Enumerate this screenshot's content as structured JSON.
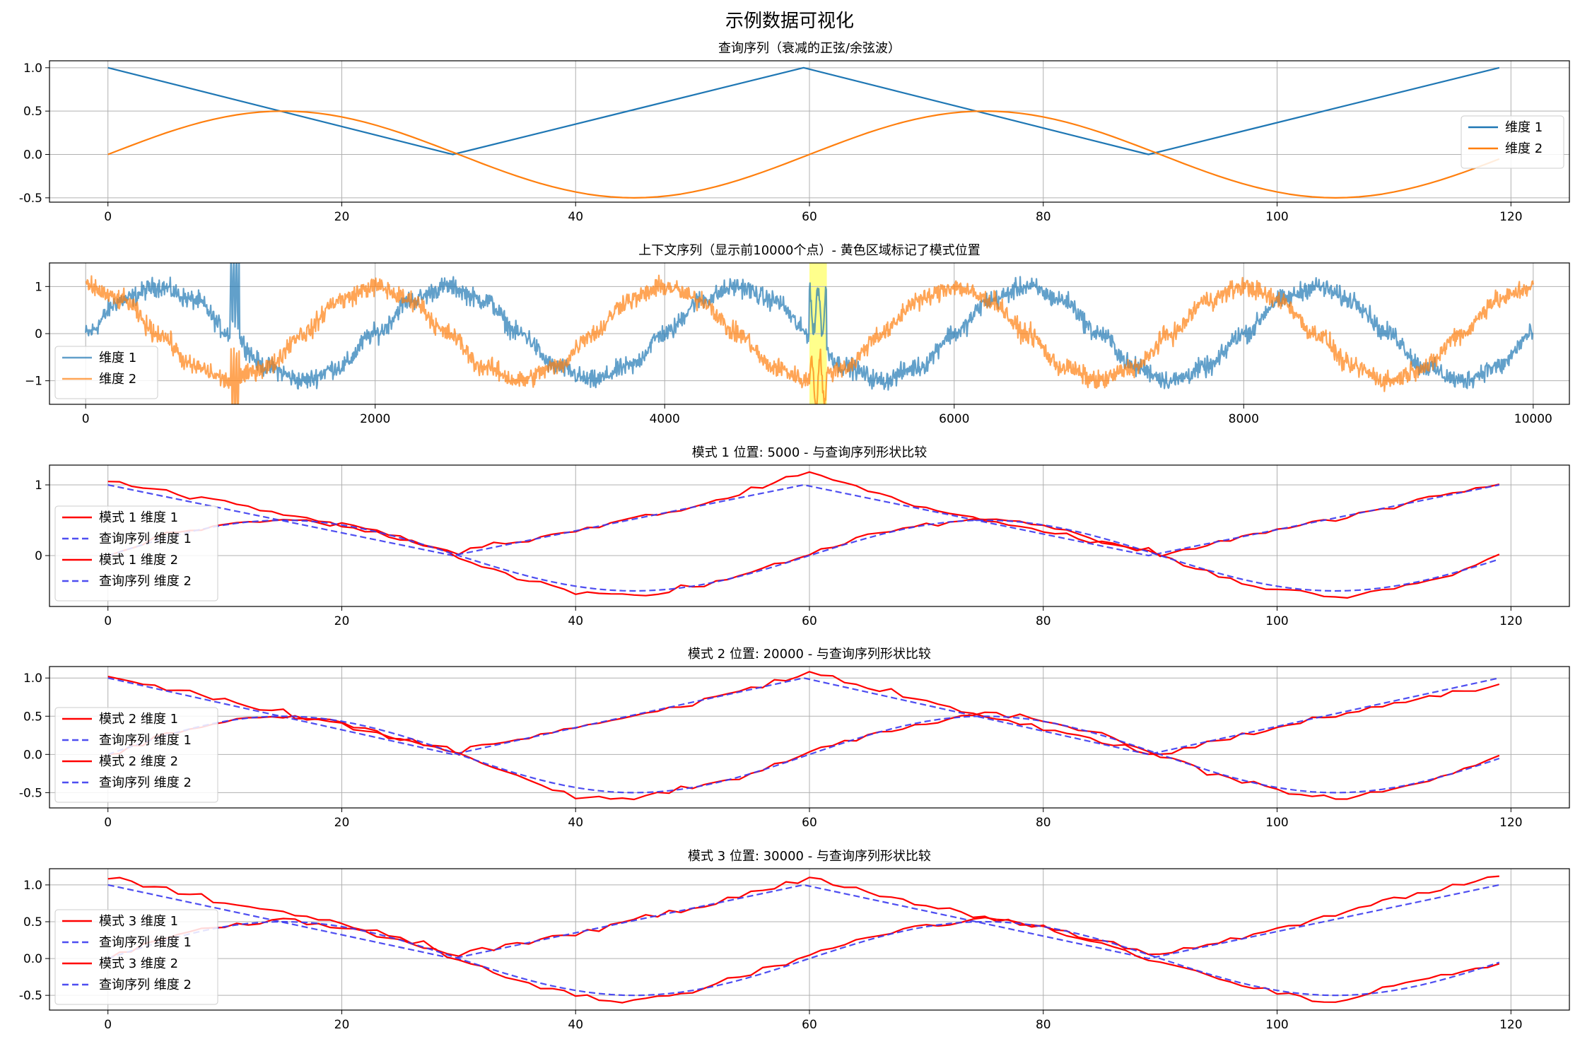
{
  "figure": {
    "suptitle": "示例数据可视化"
  },
  "colors": {
    "dim1_main": "#1f77b4",
    "dim2_main": "#ff7f0e",
    "pattern": "#ff0000",
    "query_dashed": "#3b3bf0",
    "highlight": "#ffff66",
    "grid": "#b0b0b0"
  },
  "chart_data": [
    {
      "type": "line",
      "title": "查询序列（衰减的正弦/余弦波）",
      "xlim": [
        -5,
        125
      ],
      "ylim": [
        -0.55,
        1.08
      ],
      "xticks": [
        0,
        20,
        40,
        60,
        80,
        100,
        120
      ],
      "yticks": [
        -0.5,
        0.0,
        0.5,
        1.0
      ],
      "ytick_labels": [
        "-0.5",
        "0.0",
        "0.5",
        "1.0"
      ],
      "grid": true,
      "legend": "right",
      "series": [
        {
          "name": "维度 1",
          "x": [
            0,
            29.5,
            59.5,
            89,
            119
          ],
          "y": [
            1.0,
            0.0,
            1.0,
            0.0,
            1.0
          ]
        },
        {
          "name": "维度 2",
          "x": [
            0,
            5,
            10,
            15,
            20,
            25,
            30,
            35,
            40,
            45,
            50,
            55,
            60,
            65,
            70,
            75,
            80,
            85,
            90,
            95,
            100,
            105,
            110,
            115,
            119
          ],
          "y": [
            0.0,
            0.25,
            0.433,
            0.5,
            0.433,
            0.25,
            0.0,
            -0.25,
            -0.433,
            -0.5,
            -0.433,
            -0.25,
            0.0,
            0.25,
            0.433,
            0.5,
            0.433,
            0.25,
            0.0,
            -0.25,
            -0.433,
            -0.5,
            -0.433,
            -0.25,
            0.0
          ]
        }
      ]
    },
    {
      "type": "line",
      "title": "上下文序列（显示前10000个点）- 黄色区域标记了模式位置",
      "xlim": [
        -250,
        10250
      ],
      "ylim": [
        -1.5,
        1.5
      ],
      "xticks": [
        0,
        2000,
        4000,
        6000,
        8000,
        10000
      ],
      "yticks": [
        -1,
        0,
        1
      ],
      "ytick_labels": [
        "−1",
        "0",
        "1"
      ],
      "grid": true,
      "legend": "lower-left",
      "highlight_region": [
        5000,
        5120
      ],
      "series": [
        {
          "name": "维度 1",
          "x": [
            0,
            250,
            500,
            750,
            1000,
            1250,
            1500,
            1750,
            2000,
            2250,
            2500,
            2750,
            3000,
            3250,
            3500,
            3750,
            4000,
            4250,
            4500,
            4750,
            5000,
            5250,
            5500,
            5750,
            6000,
            6250,
            6500,
            6750,
            7000,
            7250,
            7500,
            7750,
            8000,
            8250,
            8500,
            8750,
            9000,
            9250,
            9500,
            9750,
            10000
          ],
          "y": [
            0.0,
            0.71,
            1.0,
            0.71,
            0.0,
            -0.71,
            -1.0,
            -0.71,
            0.0,
            0.71,
            1.0,
            0.71,
            0.0,
            -0.71,
            -1.0,
            -0.71,
            0.0,
            0.71,
            1.0,
            0.71,
            0.0,
            -0.71,
            -1.0,
            -0.71,
            0.0,
            0.71,
            1.0,
            0.71,
            0.0,
            -0.71,
            -1.0,
            -0.71,
            0.0,
            0.71,
            1.0,
            0.71,
            0.0,
            -0.71,
            -1.0,
            -0.71,
            0.0
          ]
        },
        {
          "name": "维度 2",
          "x": [
            0,
            250,
            500,
            750,
            1000,
            1250,
            1500,
            1750,
            2000,
            2250,
            2500,
            2750,
            3000,
            3250,
            3500,
            3750,
            4000,
            4250,
            4500,
            4750,
            5000,
            5250,
            5500,
            5750,
            6000,
            6250,
            6500,
            6750,
            7000,
            7250,
            7500,
            7750,
            8000,
            8250,
            8500,
            8750,
            9000,
            9250,
            9500,
            9750,
            10000
          ],
          "y": [
            1.0,
            0.71,
            0.0,
            -0.71,
            -1.0,
            -0.71,
            0.0,
            0.71,
            1.0,
            0.71,
            0.0,
            -0.71,
            -1.0,
            -0.71,
            0.0,
            0.71,
            1.0,
            0.71,
            0.0,
            -0.71,
            -1.0,
            -0.71,
            0.0,
            0.71,
            1.0,
            0.71,
            0.0,
            -0.71,
            -1.0,
            -0.71,
            0.0,
            0.71,
            1.0,
            0.71,
            0.0,
            -0.71,
            -1.0,
            -0.71,
            0.0,
            0.71,
            1.0
          ]
        }
      ]
    },
    {
      "type": "line",
      "title": "模式 1 位置: 5000 - 与查询序列形状比较",
      "xlim": [
        -5,
        125
      ],
      "ylim": [
        -0.72,
        1.28
      ],
      "xticks": [
        0,
        20,
        40,
        60,
        80,
        100,
        120
      ],
      "yticks": [
        0,
        1
      ],
      "ytick_labels": [
        "0",
        "1"
      ],
      "grid": true,
      "legend": "lower-left",
      "series": [
        {
          "name": "模式 1 维度 1",
          "x": [
            0,
            10,
            20,
            30,
            40,
            50,
            60,
            70,
            80,
            90,
            100,
            110,
            119
          ],
          "y": [
            1.05,
            0.75,
            0.42,
            0.06,
            0.35,
            0.68,
            1.18,
            0.68,
            0.35,
            0.02,
            0.35,
            0.7,
            1.03
          ]
        },
        {
          "name": "查询序列 维度 1",
          "x": [
            0,
            29.5,
            59.5,
            89,
            119
          ],
          "y": [
            1.0,
            0.0,
            1.0,
            0.0,
            1.0
          ]
        },
        {
          "name": "模式 1 维度 2",
          "x": [
            0,
            5,
            10,
            15,
            20,
            25,
            30,
            35,
            40,
            45,
            50,
            55,
            60,
            65,
            70,
            75,
            80,
            85,
            90,
            95,
            100,
            105,
            110,
            115,
            119
          ],
          "y": [
            0.0,
            0.28,
            0.45,
            0.5,
            0.45,
            0.28,
            -0.02,
            -0.3,
            -0.5,
            -0.58,
            -0.45,
            -0.26,
            0.03,
            0.28,
            0.43,
            0.52,
            0.43,
            0.22,
            0.0,
            -0.3,
            -0.48,
            -0.6,
            -0.48,
            -0.3,
            0.04
          ]
        },
        {
          "name": "查询序列 维度 2",
          "x": [
            0,
            5,
            10,
            15,
            20,
            25,
            30,
            35,
            40,
            45,
            50,
            55,
            60,
            65,
            70,
            75,
            80,
            85,
            90,
            95,
            100,
            105,
            110,
            115,
            119
          ],
          "y": [
            0.0,
            0.25,
            0.433,
            0.5,
            0.433,
            0.25,
            0.0,
            -0.25,
            -0.433,
            -0.5,
            -0.433,
            -0.25,
            0.0,
            0.25,
            0.433,
            0.5,
            0.433,
            0.25,
            0.0,
            -0.25,
            -0.433,
            -0.5,
            -0.433,
            -0.25,
            0.0
          ]
        }
      ]
    },
    {
      "type": "line",
      "title": "模式 2 位置: 20000 - 与查询序列形状比较",
      "xlim": [
        -5,
        125
      ],
      "ylim": [
        -0.7,
        1.15
      ],
      "xticks": [
        0,
        20,
        40,
        60,
        80,
        100,
        120
      ],
      "yticks": [
        -0.5,
        0.0,
        0.5,
        1.0
      ],
      "ytick_labels": [
        "-0.5",
        "0.0",
        "0.5",
        "1.0"
      ],
      "grid": true,
      "legend": "lower-left",
      "series": [
        {
          "name": "模式 2 维度 1",
          "x": [
            0,
            10,
            20,
            30,
            40,
            50,
            60,
            70,
            80,
            90,
            100,
            110,
            119
          ],
          "y": [
            1.02,
            0.73,
            0.38,
            0.04,
            0.35,
            0.67,
            1.07,
            0.7,
            0.33,
            0.0,
            0.35,
            0.68,
            0.89
          ]
        },
        {
          "name": "查询序列 维度 1",
          "x": [
            0,
            29.5,
            59.5,
            89,
            119
          ],
          "y": [
            1.0,
            0.0,
            1.0,
            0.0,
            1.0
          ]
        },
        {
          "name": "模式 2 维度 2",
          "x": [
            0,
            5,
            10,
            15,
            20,
            25,
            30,
            35,
            40,
            45,
            50,
            55,
            60,
            65,
            70,
            75,
            80,
            85,
            90,
            95,
            100,
            105,
            110,
            115,
            119
          ],
          "y": [
            0.0,
            0.26,
            0.44,
            0.5,
            0.42,
            0.22,
            0.02,
            -0.28,
            -0.55,
            -0.57,
            -0.43,
            -0.26,
            0.02,
            0.26,
            0.4,
            0.55,
            0.45,
            0.25,
            0.0,
            -0.28,
            -0.44,
            -0.6,
            -0.45,
            -0.25,
            -0.03
          ]
        },
        {
          "name": "查询序列 维度 2",
          "x": [
            0,
            5,
            10,
            15,
            20,
            25,
            30,
            35,
            40,
            45,
            50,
            55,
            60,
            65,
            70,
            75,
            80,
            85,
            90,
            95,
            100,
            105,
            110,
            115,
            119
          ],
          "y": [
            0.0,
            0.25,
            0.433,
            0.5,
            0.433,
            0.25,
            0.0,
            -0.25,
            -0.433,
            -0.5,
            -0.433,
            -0.25,
            0.0,
            0.25,
            0.433,
            0.5,
            0.433,
            0.25,
            0.0,
            -0.25,
            -0.433,
            -0.5,
            -0.433,
            -0.25,
            0.0
          ]
        }
      ]
    },
    {
      "type": "line",
      "title": "模式 3 位置: 30000 - 与查询序列形状比较",
      "xlim": [
        -5,
        125
      ],
      "ylim": [
        -0.7,
        1.22
      ],
      "xticks": [
        0,
        20,
        40,
        60,
        80,
        100,
        120
      ],
      "yticks": [
        -0.5,
        0.0,
        0.5,
        1.0
      ],
      "ytick_labels": [
        "-0.5",
        "0.0",
        "0.5",
        "1.0"
      ],
      "grid": true,
      "legend": "lower-left",
      "series": [
        {
          "name": "模式 3 维度 1",
          "x": [
            0,
            10,
            20,
            30,
            40,
            50,
            60,
            70,
            80,
            90,
            100,
            110,
            119
          ],
          "y": [
            1.1,
            0.77,
            0.47,
            0.07,
            0.35,
            0.68,
            1.1,
            0.72,
            0.42,
            0.03,
            0.4,
            0.8,
            1.13
          ]
        },
        {
          "name": "查询序列 维度 1",
          "x": [
            0,
            29.5,
            59.5,
            89,
            119
          ],
          "y": [
            1.0,
            0.0,
            1.0,
            0.0,
            1.0
          ]
        },
        {
          "name": "模式 3 维度 2",
          "x": [
            0,
            5,
            10,
            15,
            20,
            25,
            30,
            35,
            40,
            45,
            50,
            55,
            60,
            65,
            70,
            75,
            80,
            85,
            90,
            95,
            100,
            105,
            110,
            115,
            119
          ],
          "y": [
            0.0,
            0.3,
            0.45,
            0.55,
            0.42,
            0.25,
            -0.02,
            -0.3,
            -0.5,
            -0.6,
            -0.45,
            -0.2,
            0.04,
            0.28,
            0.45,
            0.55,
            0.42,
            0.2,
            -0.03,
            -0.28,
            -0.45,
            -0.58,
            -0.35,
            -0.2,
            -0.05
          ]
        },
        {
          "name": "查询序列 维度 2",
          "x": [
            0,
            5,
            10,
            15,
            20,
            25,
            30,
            35,
            40,
            45,
            50,
            55,
            60,
            65,
            70,
            75,
            80,
            85,
            90,
            95,
            100,
            105,
            110,
            115,
            119
          ],
          "y": [
            0.0,
            0.25,
            0.433,
            0.5,
            0.433,
            0.25,
            0.0,
            -0.25,
            -0.433,
            -0.5,
            -0.433,
            -0.25,
            0.0,
            0.25,
            0.433,
            0.5,
            0.433,
            0.25,
            0.0,
            -0.25,
            -0.433,
            -0.5,
            -0.433,
            -0.25,
            0.0
          ]
        }
      ]
    }
  ]
}
